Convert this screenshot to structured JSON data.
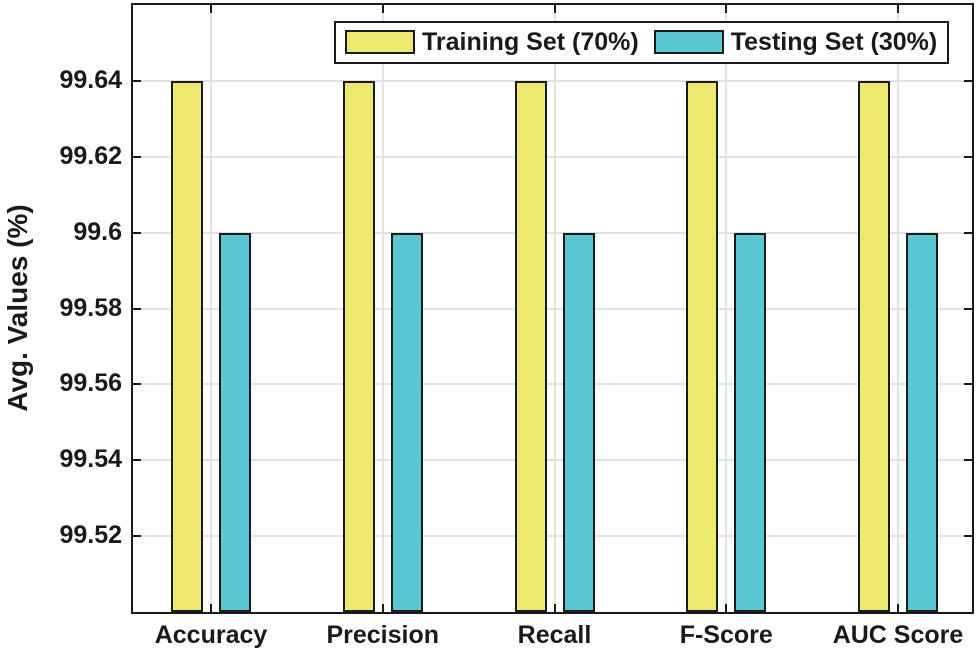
{
  "chart_data": {
    "type": "bar",
    "title": "",
    "xlabel": "",
    "ylabel": "Avg. Values (%)",
    "categories": [
      "Accuracy",
      "Precision",
      "Recall",
      "F-Score",
      "AUC Score"
    ],
    "series": [
      {
        "key": "training",
        "name": "Training Set (70%)",
        "color": "#ede96e",
        "values": [
          99.64,
          99.64,
          99.64,
          99.64,
          99.64
        ]
      },
      {
        "key": "testing",
        "name": "Testing Set (30%)",
        "color": "#5ac8d2",
        "values": [
          99.6,
          99.6,
          99.6,
          99.6,
          99.6
        ]
      }
    ],
    "ylim": [
      99.5,
      99.66
    ],
    "yticks": [
      {
        "value": 99.52,
        "label": "99.52"
      },
      {
        "value": 99.54,
        "label": "99.54"
      },
      {
        "value": 99.56,
        "label": "99.56"
      },
      {
        "value": 99.58,
        "label": "99.58"
      },
      {
        "value": 99.6,
        "label": "99.6"
      },
      {
        "value": 99.62,
        "label": "99.62"
      },
      {
        "value": 99.64,
        "label": "99.64"
      }
    ],
    "grid": true,
    "legend_position": "top-inside",
    "colors": {
      "axis": "#1a1a1a",
      "grid": "#e2e2e2",
      "bar_edge": "#1a1a1a",
      "text": "#1a1a1a",
      "plot_background": "#ffffff"
    }
  }
}
